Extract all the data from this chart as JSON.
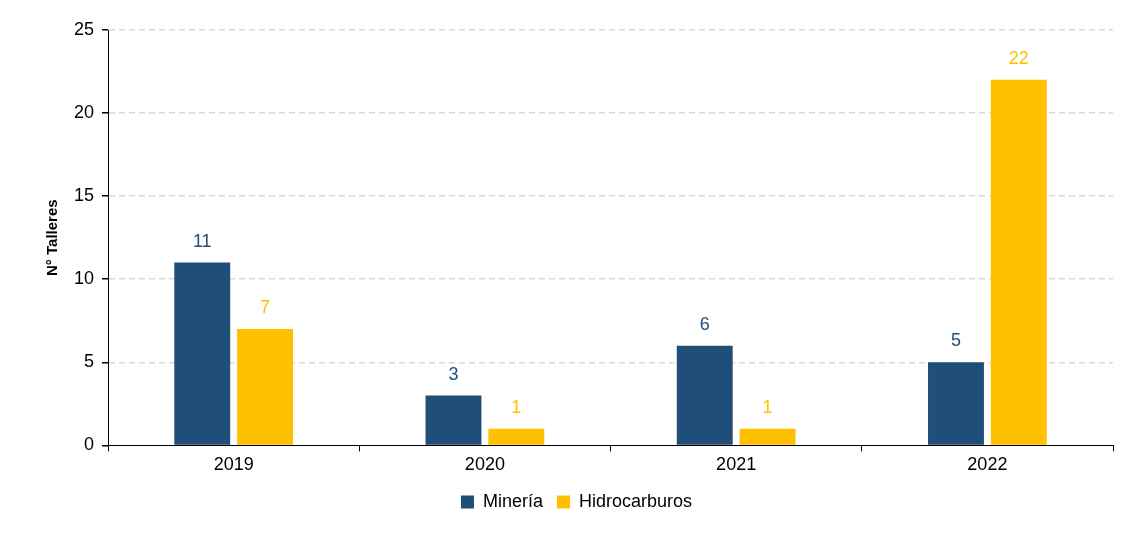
{
  "chart_data": {
    "type": "bar",
    "ylabel": "N° Talleres",
    "categories": [
      "2019",
      "2020",
      "2021",
      "2022"
    ],
    "series": [
      {
        "name": "Minería",
        "color": "#1f4e79",
        "values": [
          11,
          3,
          6,
          5
        ]
      },
      {
        "name": "Hidrocarburos",
        "color": "#ffc000",
        "values": [
          7,
          1,
          1,
          22
        ]
      }
    ],
    "ylim": [
      0,
      25
    ],
    "yticks": [
      0,
      5,
      10,
      15,
      20,
      25
    ],
    "grid": "y",
    "legend": "bottom",
    "data_labels": true
  }
}
